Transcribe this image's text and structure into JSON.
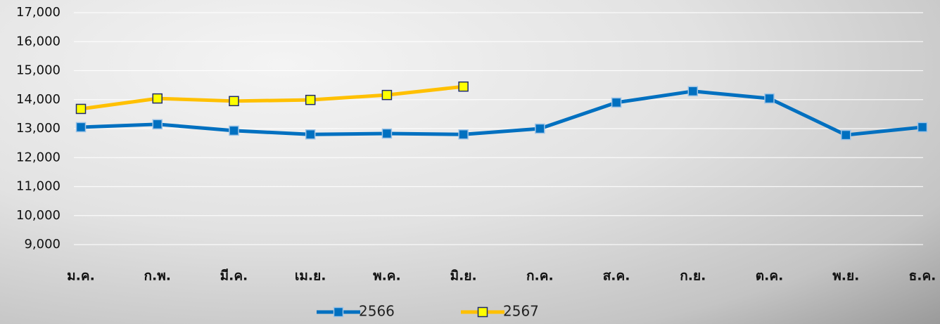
{
  "chart_data": {
    "type": "line",
    "categories": [
      "ม.ค.",
      "ก.พ.",
      "มี.ค.",
      "เม.ย.",
      "พ.ค.",
      "มิ.ย.",
      "ก.ค.",
      "ส.ค.",
      "ก.ย.",
      "ต.ค.",
      "พ.ย.",
      "ธ.ค."
    ],
    "series": [
      {
        "name": "2566",
        "color": "#0070c0",
        "marker_fill": "#0070c0",
        "values": [
          13050,
          13150,
          12930,
          12800,
          12830,
          12800,
          13000,
          13900,
          14290,
          14040,
          12780,
          13050
        ]
      },
      {
        "name": "2567",
        "color": "#ffc000",
        "marker_fill": "#ffff00",
        "values": [
          13680,
          14040,
          13950,
          13990,
          14160,
          14450,
          null,
          null,
          null,
          null,
          null,
          null
        ]
      }
    ],
    "ylim": [
      9000,
      17000
    ],
    "yticks": [
      {
        "value": 9000,
        "label": "9,000"
      },
      {
        "value": 10000,
        "label": "10,000"
      },
      {
        "value": 11000,
        "label": "11,000"
      },
      {
        "value": 12000,
        "label": "12,000"
      },
      {
        "value": 13000,
        "label": "13,000"
      },
      {
        "value": 14000,
        "label": "14,000"
      },
      {
        "value": 15000,
        "label": "15,000"
      },
      {
        "value": 16000,
        "label": "16,000"
      },
      {
        "value": 17000,
        "label": "17,000"
      }
    ],
    "grid": true,
    "legend": "bottom"
  }
}
